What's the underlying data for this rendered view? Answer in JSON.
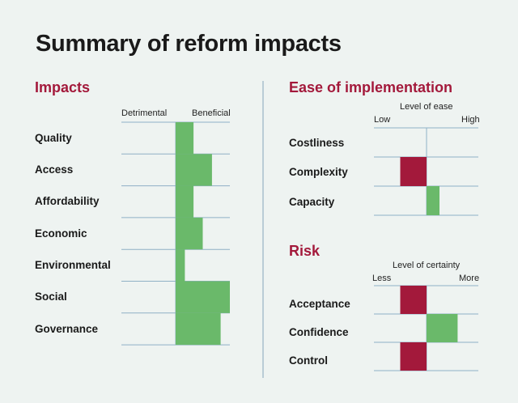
{
  "page": {
    "title": "Summary of reform impacts",
    "colors": {
      "background": "#eef3f1",
      "positive": "#6ab96a",
      "negative": "#a3193b",
      "grid": "#8fb0c6",
      "divider": "#9fb8c8"
    }
  },
  "chart_data": [
    {
      "type": "bar",
      "orientation": "horizontal",
      "title": "Impacts",
      "axis_ends": [
        "Detrimental",
        "Beneficial"
      ],
      "categories": [
        "Quality",
        "Access",
        "Affordability",
        "Economic",
        "Environmental",
        "Social",
        "Governance"
      ],
      "values": [
        0.33,
        0.67,
        0.33,
        0.5,
        0.17,
        1.0,
        0.83
      ],
      "xlim": [
        -1,
        1
      ]
    },
    {
      "type": "bar",
      "orientation": "horizontal",
      "title": "Ease of implementation",
      "xlabel": "Level of ease",
      "axis_ends": [
        "Low",
        "High"
      ],
      "categories": [
        "Costliness",
        "Complexity",
        "Capacity"
      ],
      "values": [
        0,
        -0.5,
        0.25
      ],
      "xlim": [
        -1,
        1
      ]
    },
    {
      "type": "bar",
      "orientation": "horizontal",
      "title": "Risk",
      "xlabel": "Level of certainty",
      "axis_ends": [
        "Less",
        "More"
      ],
      "categories": [
        "Acceptance",
        "Confidence",
        "Control"
      ],
      "values": [
        -0.5,
        0.6,
        -0.5
      ],
      "xlim": [
        -1,
        1
      ]
    }
  ]
}
